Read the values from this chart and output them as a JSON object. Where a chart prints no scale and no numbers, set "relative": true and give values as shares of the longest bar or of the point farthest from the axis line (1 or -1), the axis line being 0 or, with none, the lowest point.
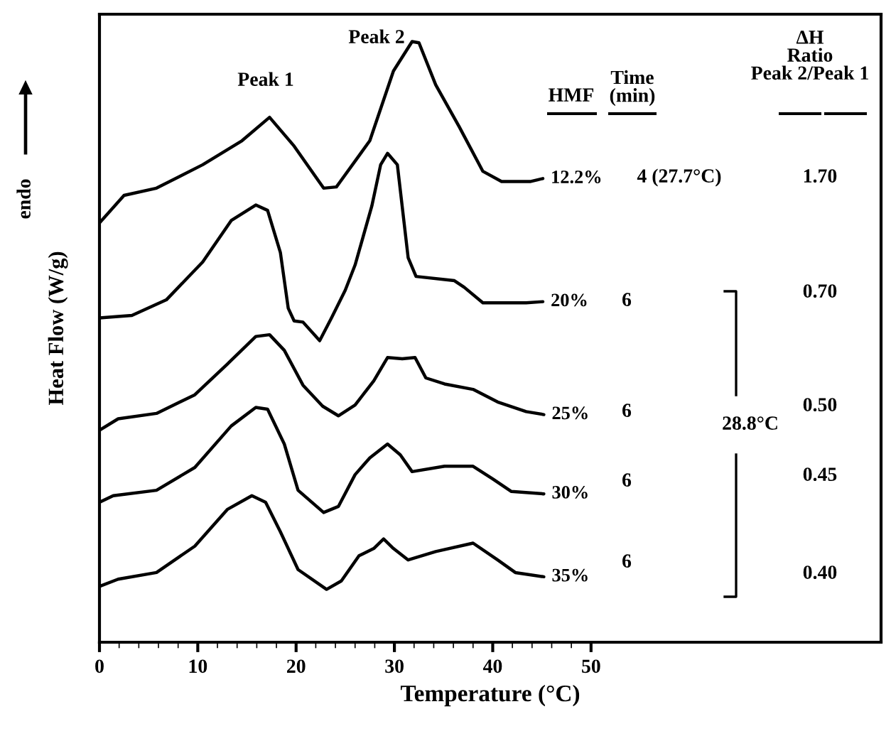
{
  "chart_data": {
    "type": "line",
    "relative": true,
    "xlabel": "Temperature (°C)",
    "ylabel": "Heat Flow (W/g)",
    "xlim": [
      0,
      79.5
    ],
    "xticks": [
      0,
      10,
      20,
      30,
      40,
      50
    ],
    "grid": false,
    "legend": false,
    "marker": "none",
    "line_style": "solid",
    "series": [
      {
        "name": "12.2%",
        "color": "#000000",
        "x": [
          0,
          2.5,
          5.8,
          10.5,
          14.5,
          17.3,
          19.8,
          22.8,
          24.1,
          27.5,
          29.9,
          31.8,
          32.5,
          34.2,
          36.6,
          39.0,
          40.9,
          43.8,
          45.1
        ],
        "values": [
          0.698,
          0.744,
          0.756,
          0.795,
          0.835,
          0.874,
          0.826,
          0.756,
          0.758,
          0.835,
          0.951,
          1.0,
          0.998,
          0.928,
          0.858,
          0.784,
          0.767,
          0.767,
          0.772
        ]
      },
      {
        "name": "20%",
        "color": "#000000",
        "x": [
          0,
          3.3,
          6.8,
          10.5,
          13.4,
          15.9,
          17.1,
          18.4,
          19.2,
          19.8,
          20.7,
          22.4,
          23.6,
          25.0,
          26.0,
          27.7,
          28.6,
          29.3,
          30.3,
          31.4,
          32.2,
          36.1,
          37.1,
          39.0,
          43.4,
          45.1
        ],
        "values": [
          0.54,
          0.544,
          0.57,
          0.633,
          0.702,
          0.728,
          0.719,
          0.649,
          0.556,
          0.535,
          0.533,
          0.502,
          0.54,
          0.586,
          0.628,
          0.726,
          0.795,
          0.814,
          0.795,
          0.64,
          0.609,
          0.602,
          0.591,
          0.565,
          0.565,
          0.567
        ]
      },
      {
        "name": "25%",
        "color": "#000000",
        "x": [
          0,
          1.9,
          5.8,
          9.7,
          13.0,
          15.9,
          17.3,
          18.8,
          20.7,
          22.7,
          24.3,
          26.0,
          27.9,
          29.3,
          30.8,
          32.1,
          33.2,
          35.1,
          38.0,
          40.5,
          43.4,
          45.2
        ],
        "values": [
          0.353,
          0.372,
          0.381,
          0.412,
          0.463,
          0.509,
          0.512,
          0.486,
          0.428,
          0.393,
          0.377,
          0.395,
          0.435,
          0.474,
          0.472,
          0.474,
          0.44,
          0.43,
          0.421,
          0.4,
          0.384,
          0.379
        ]
      },
      {
        "name": "30%",
        "color": "#000000",
        "x": [
          0,
          1.4,
          5.8,
          9.7,
          13.4,
          15.9,
          17.1,
          18.8,
          20.2,
          22.8,
          24.3,
          26.0,
          27.5,
          29.3,
          30.6,
          31.8,
          35.1,
          38.0,
          40.0,
          41.9,
          45.2
        ],
        "values": [
          0.233,
          0.244,
          0.253,
          0.291,
          0.36,
          0.391,
          0.388,
          0.33,
          0.253,
          0.216,
          0.226,
          0.279,
          0.307,
          0.33,
          0.312,
          0.284,
          0.293,
          0.293,
          0.272,
          0.251,
          0.247
        ]
      },
      {
        "name": "35%",
        "color": "#000000",
        "x": [
          0,
          1.9,
          5.8,
          9.7,
          13.0,
          15.5,
          16.9,
          18.4,
          20.2,
          23.1,
          24.6,
          26.4,
          27.9,
          28.9,
          29.9,
          31.4,
          34.2,
          38.0,
          40.5,
          42.3,
          45.2
        ],
        "values": [
          0.093,
          0.105,
          0.116,
          0.16,
          0.221,
          0.244,
          0.233,
          0.184,
          0.121,
          0.088,
          0.102,
          0.144,
          0.156,
          0.172,
          0.156,
          0.137,
          0.151,
          0.165,
          0.137,
          0.116,
          0.109
        ]
      }
    ],
    "annotations": [
      "Peak 1",
      "Peak 2",
      "HMF",
      "Time\n(min)",
      "ΔH\nRatio\nPeak 2/Peak 1",
      "4 (27.7°C)",
      "1.70",
      "6",
      "6",
      "6",
      "6",
      "0.70",
      "0.50",
      "0.45",
      "0.40",
      "28.8°C",
      "endo"
    ]
  }
}
